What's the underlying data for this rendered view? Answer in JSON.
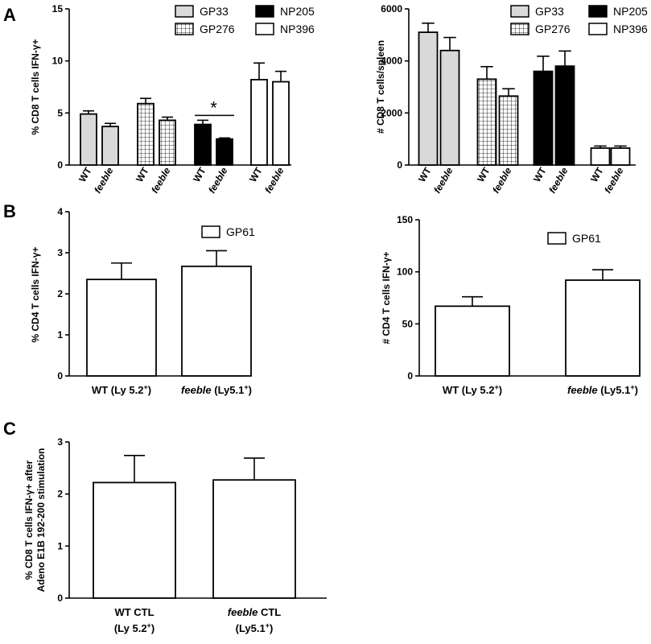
{
  "panel_labels": [
    "A",
    "B",
    "C"
  ],
  "colors": {
    "bar_outline": "#000000",
    "gp33_fill": "#d9d9d9",
    "np205_fill": "#000000",
    "white_fill": "#ffffff"
  },
  "chart_data": [
    {
      "id": "A-left",
      "type": "bar",
      "ylabel": "% CD8 T cells IFN-γ+",
      "ylim": [
        0,
        15
      ],
      "yticks": [
        "0",
        "5",
        "10",
        "15"
      ],
      "legend": {
        "placement": "top",
        "entries": [
          "GP33",
          "GP276",
          "NP205",
          "NP396"
        ]
      },
      "categories": [
        "WT",
        "feeble",
        "WT",
        "feeble",
        "WT",
        "feeble",
        "WT",
        "feeble"
      ],
      "italic_categories": [
        false,
        true,
        false,
        true,
        false,
        true,
        false,
        true
      ],
      "groups": [
        "GP33",
        "GP33",
        "GP276",
        "GP276",
        "NP205",
        "NP205",
        "NP396",
        "NP396"
      ],
      "values": [
        4.9,
        3.7,
        5.9,
        4.3,
        3.9,
        2.5,
        8.2,
        8.0
      ],
      "errors": [
        0.3,
        0.3,
        0.5,
        0.3,
        0.4,
        0.1,
        1.6,
        1.0
      ],
      "annotation": {
        "text": "*",
        "between": [
          4,
          5
        ]
      }
    },
    {
      "id": "A-right",
      "type": "bar",
      "ylabel": "# CD8 T cells/spleen",
      "ylim": [
        0,
        6000
      ],
      "yticks": [
        "0",
        "2000",
        "4000",
        "6000"
      ],
      "legend": {
        "placement": "top",
        "entries": [
          "GP33",
          "GP276",
          "NP205",
          "NP396"
        ]
      },
      "categories": [
        "WT",
        "feeble",
        "WT",
        "feeble",
        "WT",
        "feeble",
        "WT",
        "feeble"
      ],
      "italic_categories": [
        false,
        true,
        false,
        true,
        false,
        true,
        false,
        true
      ],
      "groups": [
        "GP33",
        "GP33",
        "GP276",
        "GP276",
        "NP205",
        "NP205",
        "NP396",
        "NP396"
      ],
      "values": [
        5100,
        4400,
        3300,
        2650,
        3600,
        3800,
        650,
        650
      ],
      "errors": [
        350,
        500,
        480,
        280,
        580,
        580,
        80,
        80
      ]
    },
    {
      "id": "B-left",
      "type": "bar",
      "ylabel": "% CD4 T cells IFN-γ+",
      "ylim": [
        0,
        4
      ],
      "yticks": [
        "0",
        "1",
        "2",
        "3",
        "4"
      ],
      "legend": {
        "placement": "top",
        "entries": [
          "GP61"
        ]
      },
      "categories": [
        {
          "lines": [
            [
              "",
              "WT (Ly 5.2"
            ],
            [
              "sup",
              "+"
            ],
            [
              "",
              ")"
            ]
          ]
        },
        {
          "lines": [
            [
              "i",
              "feeble"
            ],
            [
              "",
              " (Ly5.1"
            ],
            [
              "sup",
              "+"
            ],
            [
              "",
              ")"
            ]
          ]
        }
      ],
      "values": [
        2.35,
        2.67
      ],
      "errors": [
        0.4,
        0.38
      ]
    },
    {
      "id": "B-right",
      "type": "bar",
      "ylabel": "# CD4 T cells IFN-γ+",
      "ylim": [
        0,
        150
      ],
      "yticks": [
        "0",
        "50",
        "100",
        "150"
      ],
      "legend": {
        "placement": "top",
        "entries": [
          "GP61"
        ]
      },
      "categories": [
        {
          "lines": [
            [
              "",
              "WT (Ly 5.2"
            ],
            [
              "sup",
              "+"
            ],
            [
              "",
              ")"
            ]
          ]
        },
        {
          "lines": [
            [
              "i",
              "feeble"
            ],
            [
              "",
              " (Ly5.1"
            ],
            [
              "sup",
              "+"
            ],
            [
              "",
              ")"
            ]
          ]
        }
      ],
      "values": [
        67,
        92
      ],
      "errors": [
        9,
        10
      ]
    },
    {
      "id": "C",
      "type": "bar",
      "ylabel_lines": [
        "% CD8 T cells IFN-γ+ after",
        "Adeno E1B 192-200 stimulation"
      ],
      "ylim": [
        0,
        3
      ],
      "yticks": [
        "0",
        "1",
        "2",
        "3"
      ],
      "categories": [
        {
          "lines": [
            [
              "",
              "WT CTL"
            ]
          ],
          "line2": [
            [
              "",
              "(Ly 5.2"
            ],
            [
              "sup",
              "+"
            ],
            [
              "",
              ")"
            ]
          ]
        },
        {
          "lines": [
            [
              "i",
              "feeble"
            ],
            [
              "",
              " CTL"
            ]
          ],
          "line2": [
            [
              "",
              "(Ly5.1"
            ],
            [
              "sup",
              "+"
            ],
            [
              "",
              ")"
            ]
          ]
        }
      ],
      "values": [
        2.22,
        2.27
      ],
      "errors": [
        0.52,
        0.42
      ]
    }
  ]
}
